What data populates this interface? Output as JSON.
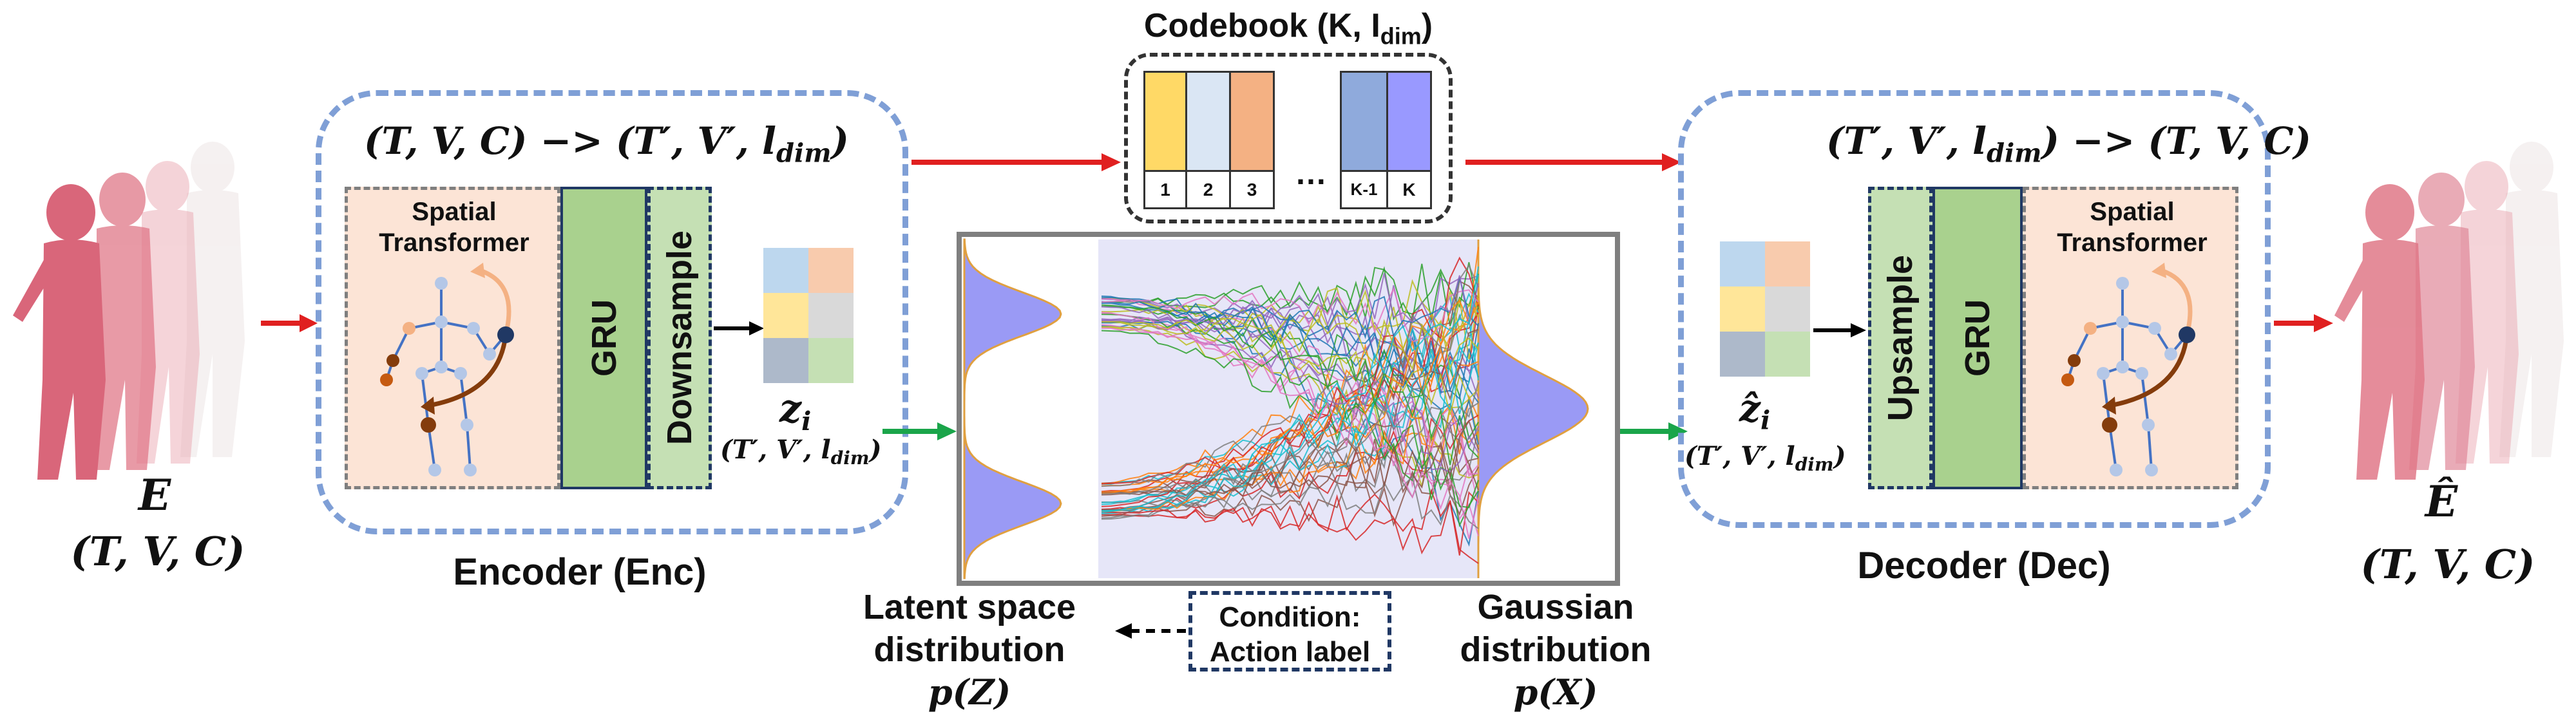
{
  "input": {
    "symbol": "E",
    "dims": "(T, V, C)"
  },
  "output": {
    "symbol": "Ê",
    "dims": "(T, V, C)"
  },
  "encoder": {
    "label": "Encoder (Enc)",
    "formula": "(T, V, C) −> (T′, V′, l",
    "formula_sub": "dim",
    "formula_end": ")",
    "spatial_transformer": "Spatial Transformer",
    "gru": "GRU",
    "downsample": "Downsample",
    "latent": "z",
    "latent_sub": "i",
    "latent_dims": "(T′, V′, l",
    "latent_dims_sub": "dim",
    "latent_dims_end": ")"
  },
  "decoder": {
    "label": "Decoder (Dec)",
    "formula": "(T′, V′, l",
    "formula_sub": "dim",
    "formula_end": ") −> (T, V, C)",
    "spatial_transformer": "Spatial Transformer",
    "gru": "GRU",
    "upsample": "Upsample",
    "latent": "ẑ",
    "latent_sub": "i",
    "latent_dims": "(T′, V′, l",
    "latent_dims_sub": "dim",
    "latent_dims_end": ")"
  },
  "codebook": {
    "title": "Codebook (K, I",
    "title_sub": "dim",
    "title_end": ")",
    "cells": [
      {
        "label": "1",
        "color": "#ffd966"
      },
      {
        "label": "2",
        "color": "#dae6f4"
      },
      {
        "label": "3",
        "color": "#f4b183"
      },
      {
        "label": "K-1",
        "color": "#8faadc"
      },
      {
        "label": "K",
        "color": "#9999ff"
      }
    ],
    "ellipsis": "…"
  },
  "latent_space": {
    "line1": "Latent space",
    "line2": "distribution ",
    "math": "p(Z)"
  },
  "gaussian": {
    "line1": "Gaussian",
    "line2": "distribution ",
    "math": "p(X)"
  },
  "condition": {
    "line1": "Condition:",
    "line2": "Action label"
  },
  "colors": {
    "dashed_border": "#7f9fd6",
    "skin_fill": "#fce4d6",
    "gru_fill": "#a9d18e",
    "sample_fill": "#c5e0b4",
    "red_arrow": "#e02020",
    "green_arrow": "#1aa54a",
    "distribution": "#9a9af5",
    "panel_bg": "#e6e6f8"
  },
  "latent_grid_colors": [
    "#bdd7ee",
    "#f8cbad",
    "#ffe699",
    "#d9d9d9",
    "#adb9ca",
    "#c5e0b4"
  ]
}
